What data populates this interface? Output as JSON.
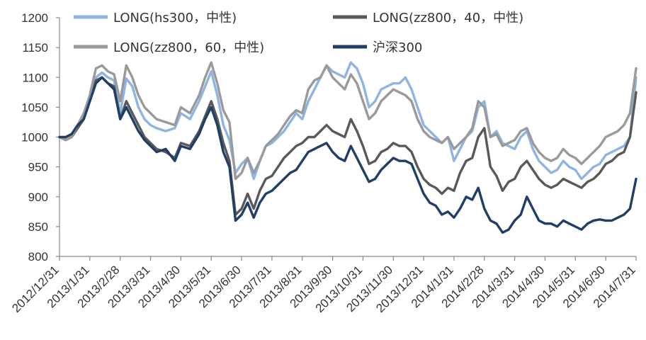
{
  "chart_data": {
    "type": "line",
    "title": "",
    "xlabel": "",
    "ylabel": "",
    "ylim": [
      800,
      1200
    ],
    "yticks": [
      800,
      850,
      900,
      950,
      1000,
      1050,
      1100,
      1150,
      1200
    ],
    "ytick_labels": [
      "800",
      "850",
      "900",
      "950",
      "1000",
      "1050",
      "1100",
      "1150",
      "1200"
    ],
    "xtick_labels": [
      "2012/12/31",
      "2013/1/31",
      "2013/2/28",
      "2013/3/31",
      "2013/4/30",
      "2013/5/31",
      "2013/6/30",
      "2013/7/31",
      "2013/8/31",
      "2013/9/30",
      "2013/10/31",
      "2013/11/30",
      "2013/12/31",
      "2014/1/31",
      "2014/2/28",
      "2014/3/31",
      "2014/4/30",
      "2014/5/31",
      "2014/6/30",
      "2014/7/31"
    ],
    "x_range": [
      0,
      19
    ],
    "legend_position": "top",
    "grid": false,
    "series": [
      {
        "name": "LONG(hs300，中性)",
        "color": "#8EB4E3",
        "x": [
          0,
          0.2,
          0.4,
          0.6,
          0.8,
          1.0,
          1.2,
          1.4,
          1.6,
          1.8,
          2.0,
          2.2,
          2.4,
          2.6,
          2.8,
          3.0,
          3.2,
          3.5,
          3.8,
          4.0,
          4.3,
          4.6,
          4.8,
          5.0,
          5.2,
          5.4,
          5.6,
          5.8,
          6.0,
          6.2,
          6.4,
          6.6,
          6.8,
          7.0,
          7.2,
          7.4,
          7.6,
          7.8,
          8.0,
          8.2,
          8.4,
          8.6,
          8.8,
          9.0,
          9.2,
          9.4,
          9.6,
          9.8,
          10.0,
          10.2,
          10.4,
          10.6,
          10.8,
          11.0,
          11.2,
          11.4,
          11.6,
          11.8,
          12.0,
          12.2,
          12.4,
          12.6,
          12.8,
          13.0,
          13.2,
          13.4,
          13.6,
          13.8,
          14.0,
          14.2,
          14.4,
          14.6,
          14.8,
          15.0,
          15.2,
          15.4,
          15.6,
          15.8,
          16.0,
          16.2,
          16.4,
          16.6,
          16.8,
          17.0,
          17.2,
          17.4,
          17.6,
          17.8,
          18.0,
          18.2,
          18.4,
          18.6,
          18.8,
          19.0
        ],
        "values": [
          1000,
          998,
          1000,
          1020,
          1035,
          1060,
          1100,
          1108,
          1100,
          1095,
          1040,
          1098,
          1085,
          1050,
          1030,
          1020,
          1015,
          1010,
          1015,
          1040,
          1030,
          1060,
          1085,
          1110,
          1070,
          1020,
          995,
          940,
          955,
          965,
          930,
          960,
          985,
          990,
          1000,
          1010,
          1025,
          1040,
          1030,
          1060,
          1080,
          1100,
          1120,
          1110,
          1105,
          1100,
          1125,
          1115,
          1090,
          1050,
          1060,
          1080,
          1085,
          1090,
          1090,
          1100,
          1080,
          1050,
          1020,
          1010,
          1000,
          990,
          1000,
          960,
          980,
          1000,
          1010,
          1050,
          1060,
          1000,
          1010,
          990,
          985,
          980,
          1000,
          1010,
          980,
          960,
          950,
          940,
          945,
          960,
          950,
          945,
          930,
          940,
          950,
          955,
          970,
          975,
          980,
          985,
          1000,
          1100
        ]
      },
      {
        "name": "LONG(zz800，40，中性)",
        "color": "#595959",
        "x": [
          0,
          0.2,
          0.4,
          0.6,
          0.8,
          1.0,
          1.2,
          1.4,
          1.6,
          1.8,
          2.0,
          2.2,
          2.4,
          2.6,
          2.8,
          3.0,
          3.2,
          3.5,
          3.8,
          4.0,
          4.3,
          4.6,
          4.8,
          5.0,
          5.2,
          5.4,
          5.6,
          5.8,
          6.0,
          6.2,
          6.4,
          6.6,
          6.8,
          7.0,
          7.2,
          7.4,
          7.6,
          7.8,
          8.0,
          8.2,
          8.4,
          8.6,
          8.8,
          9.0,
          9.2,
          9.4,
          9.6,
          9.8,
          10.0,
          10.2,
          10.4,
          10.6,
          10.8,
          11.0,
          11.2,
          11.4,
          11.6,
          11.8,
          12.0,
          12.2,
          12.4,
          12.6,
          12.8,
          13.0,
          13.2,
          13.4,
          13.6,
          13.8,
          14.0,
          14.2,
          14.4,
          14.6,
          14.8,
          15.0,
          15.2,
          15.4,
          15.6,
          15.8,
          16.0,
          16.2,
          16.4,
          16.6,
          16.8,
          17.0,
          17.2,
          17.4,
          17.6,
          17.8,
          18.0,
          18.2,
          18.4,
          18.6,
          18.8,
          19.0
        ],
        "values": [
          1000,
          995,
          1000,
          1015,
          1030,
          1060,
          1095,
          1100,
          1090,
          1085,
          1030,
          1060,
          1040,
          1020,
          1000,
          990,
          980,
          975,
          965,
          990,
          985,
          1010,
          1035,
          1060,
          1030,
          990,
          960,
          870,
          880,
          905,
          880,
          910,
          930,
          935,
          950,
          965,
          975,
          985,
          990,
          1000,
          1000,
          1010,
          1020,
          1010,
          1005,
          1000,
          1030,
          1010,
          985,
          955,
          960,
          975,
          980,
          990,
          985,
          985,
          975,
          950,
          930,
          920,
          915,
          905,
          915,
          910,
          940,
          960,
          965,
          1000,
          1015,
          950,
          935,
          910,
          925,
          930,
          950,
          960,
          945,
          930,
          920,
          915,
          920,
          930,
          925,
          920,
          915,
          925,
          930,
          940,
          955,
          960,
          970,
          975,
          1000,
          1075
        ]
      },
      {
        "name": "LONG(zz800，60，中性)",
        "color": "#9A9A9A",
        "x": [
          0,
          0.2,
          0.4,
          0.6,
          0.8,
          1.0,
          1.2,
          1.4,
          1.6,
          1.8,
          2.0,
          2.2,
          2.4,
          2.6,
          2.8,
          3.0,
          3.2,
          3.5,
          3.8,
          4.0,
          4.3,
          4.6,
          4.8,
          5.0,
          5.2,
          5.4,
          5.6,
          5.8,
          6.0,
          6.2,
          6.4,
          6.6,
          6.8,
          7.0,
          7.2,
          7.4,
          7.6,
          7.8,
          8.0,
          8.2,
          8.4,
          8.6,
          8.8,
          9.0,
          9.2,
          9.4,
          9.6,
          9.8,
          10.0,
          10.2,
          10.4,
          10.6,
          10.8,
          11.0,
          11.2,
          11.4,
          11.6,
          11.8,
          12.0,
          12.2,
          12.4,
          12.6,
          12.8,
          13.0,
          13.2,
          13.4,
          13.6,
          13.8,
          14.0,
          14.2,
          14.4,
          14.6,
          14.8,
          15.0,
          15.2,
          15.4,
          15.6,
          15.8,
          16.0,
          16.2,
          16.4,
          16.6,
          16.8,
          17.0,
          17.2,
          17.4,
          17.6,
          17.8,
          18.0,
          18.2,
          18.4,
          18.6,
          18.8,
          19.0
        ],
        "values": [
          1000,
          995,
          1000,
          1020,
          1040,
          1070,
          1115,
          1120,
          1110,
          1105,
          1060,
          1120,
          1100,
          1070,
          1050,
          1040,
          1030,
          1025,
          1020,
          1050,
          1040,
          1070,
          1100,
          1125,
          1090,
          1045,
          1025,
          930,
          940,
          965,
          940,
          960,
          985,
          995,
          1005,
          1020,
          1035,
          1045,
          1040,
          1080,
          1095,
          1100,
          1120,
          1100,
          1090,
          1080,
          1105,
          1090,
          1060,
          1030,
          1040,
          1060,
          1070,
          1080,
          1075,
          1070,
          1060,
          1030,
          1010,
          1000,
          995,
          990,
          1000,
          980,
          990,
          1000,
          1015,
          1060,
          1050,
          1000,
          1005,
          985,
          990,
          995,
          1010,
          1015,
          990,
          975,
          965,
          960,
          965,
          980,
          970,
          965,
          955,
          965,
          975,
          985,
          1000,
          1005,
          1010,
          1020,
          1040,
          1115
        ]
      },
      {
        "name": "沪深300",
        "color": "#1F3F68",
        "x": [
          0,
          0.2,
          0.4,
          0.6,
          0.8,
          1.0,
          1.2,
          1.4,
          1.6,
          1.8,
          2.0,
          2.2,
          2.4,
          2.6,
          2.8,
          3.0,
          3.2,
          3.5,
          3.8,
          4.0,
          4.3,
          4.6,
          4.8,
          5.0,
          5.2,
          5.4,
          5.6,
          5.8,
          6.0,
          6.2,
          6.4,
          6.6,
          6.8,
          7.0,
          7.2,
          7.4,
          7.6,
          7.8,
          8.0,
          8.2,
          8.4,
          8.6,
          8.8,
          9.0,
          9.2,
          9.4,
          9.6,
          9.8,
          10.0,
          10.2,
          10.4,
          10.6,
          10.8,
          11.0,
          11.2,
          11.4,
          11.6,
          11.8,
          12.0,
          12.2,
          12.4,
          12.6,
          12.8,
          13.0,
          13.2,
          13.4,
          13.6,
          13.8,
          14.0,
          14.2,
          14.4,
          14.6,
          14.8,
          15.0,
          15.2,
          15.4,
          15.6,
          15.8,
          16.0,
          16.2,
          16.4,
          16.6,
          16.8,
          17.0,
          17.2,
          17.4,
          17.6,
          17.8,
          18.0,
          18.2,
          18.4,
          18.6,
          18.8,
          19.0
        ],
        "values": [
          1000,
          1000,
          1005,
          1020,
          1030,
          1060,
          1090,
          1100,
          1090,
          1080,
          1030,
          1050,
          1030,
          1010,
          995,
          985,
          975,
          980,
          960,
          985,
          980,
          1005,
          1030,
          1050,
          1020,
          975,
          950,
          860,
          870,
          890,
          865,
          890,
          905,
          910,
          920,
          930,
          940,
          945,
          960,
          975,
          980,
          985,
          990,
          975,
          965,
          960,
          985,
          965,
          945,
          925,
          930,
          945,
          955,
          965,
          960,
          960,
          955,
          930,
          905,
          890,
          885,
          870,
          875,
          865,
          880,
          900,
          895,
          915,
          880,
          860,
          855,
          840,
          845,
          860,
          870,
          900,
          880,
          860,
          855,
          855,
          850,
          860,
          855,
          850,
          845,
          855,
          860,
          862,
          860,
          860,
          865,
          870,
          880,
          930
        ]
      }
    ]
  }
}
